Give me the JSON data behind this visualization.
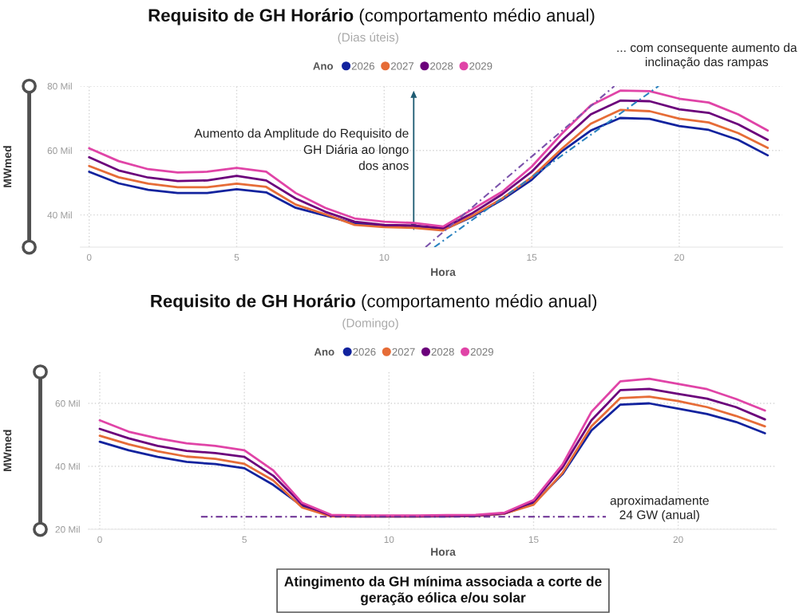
{
  "chart_data": [
    {
      "type": "line",
      "title": "Requisito de GH Horário (comportamento médio anual)",
      "subtitle": "(Dias úteis)",
      "xlabel": "Hora",
      "ylabel": "MWmed",
      "legend_title": "Ano",
      "legend": "top",
      "grid": true,
      "x": [
        0,
        1,
        2,
        3,
        4,
        5,
        6,
        7,
        8,
        9,
        10,
        11,
        12,
        13,
        14,
        15,
        16,
        17,
        18,
        19,
        20,
        21,
        22,
        23
      ],
      "xlim": [
        -0.3,
        23.5
      ],
      "xticks": [
        0,
        5,
        10,
        15,
        20
      ],
      "ylim": [
        30,
        80
      ],
      "yticks": [
        {
          "value": 40,
          "label": "40 Mil"
        },
        {
          "value": 60,
          "label": "60 Mil"
        },
        {
          "value": 80,
          "label": "80 Mil"
        }
      ],
      "series": [
        {
          "name": "2026",
          "color": "#12239e",
          "values": [
            53.4,
            49.8,
            47.8,
            46.8,
            46.8,
            48.0,
            47.0,
            42.2,
            39.8,
            37.3,
            36.6,
            36.4,
            35.4,
            39.5,
            44.7,
            50.9,
            59.6,
            66.2,
            70.1,
            69.8,
            67.6,
            66.4,
            63.3,
            58.5
          ]
        },
        {
          "name": "2027",
          "color": "#e66c37",
          "values": [
            55.2,
            51.7,
            49.7,
            48.6,
            48.6,
            49.7,
            48.7,
            43.2,
            40.2,
            36.9,
            36.2,
            36.0,
            35.2,
            39.8,
            45.1,
            51.7,
            60.4,
            68.3,
            72.6,
            72.2,
            69.9,
            68.7,
            65.4,
            60.8
          ]
        },
        {
          "name": "2028",
          "color": "#6b007b",
          "values": [
            57.9,
            53.8,
            51.6,
            50.5,
            50.7,
            52.1,
            50.7,
            45.1,
            41.0,
            37.9,
            36.9,
            36.7,
            35.9,
            40.6,
            46.4,
            53.4,
            62.9,
            71.2,
            75.5,
            75.3,
            72.8,
            71.7,
            68.1,
            63.3
          ]
        },
        {
          "name": "2029",
          "color": "#e044a7",
          "values": [
            60.7,
            56.7,
            54.2,
            53.2,
            53.4,
            54.6,
            53.4,
            46.8,
            42.2,
            38.9,
            37.9,
            37.5,
            36.4,
            41.8,
            47.2,
            55.0,
            65.0,
            74.0,
            78.6,
            78.4,
            76.1,
            74.9,
            71.2,
            66.2
          ]
        },
        {
          "type": "line",
          "x": [
            11.4,
            17.8
          ],
          "values": [
            30,
            80
          ],
          "color": "#7b52ab",
          "line_style": "dashdot"
        },
        {
          "type": "line",
          "x": [
            11.7,
            19.3
          ],
          "values": [
            30,
            80
          ],
          "color": "#2b83c0",
          "line_style": "dashdot"
        }
      ],
      "annotations": [
        "Aumento da Amplitude do Requisito de\nGH Diária ao longo\ndos anos",
        "... com consequente aumento da\ninclinação das rampas"
      ]
    },
    {
      "type": "line",
      "title": "Requisito de GH Horário (comportamento médio anual)",
      "subtitle": "(Domingo)",
      "xlabel": "Hora",
      "ylabel": "MWmed",
      "legend_title": "Ano",
      "legend": "top",
      "grid": true,
      "x": [
        0,
        1,
        2,
        3,
        4,
        5,
        6,
        7,
        8,
        9,
        10,
        11,
        12,
        13,
        14,
        15,
        16,
        17,
        18,
        19,
        20,
        21,
        22,
        23
      ],
      "xlim": [
        -0.4,
        23.4
      ],
      "xticks": [
        0,
        5,
        10,
        15,
        20
      ],
      "ylim": [
        20,
        70
      ],
      "yticks": [
        {
          "value": 20,
          "label": "20 Mil"
        },
        {
          "value": 40,
          "label": "40 Mil"
        },
        {
          "value": 60,
          "label": "60 Mil"
        }
      ],
      "series": [
        {
          "name": "2026",
          "color": "#12239e",
          "values": [
            47.8,
            45.1,
            43.0,
            41.4,
            40.7,
            39.4,
            34.1,
            27.4,
            24.2,
            24.1,
            24.1,
            24.1,
            24.1,
            24.2,
            25.0,
            28.2,
            37.5,
            51.4,
            59.6,
            60.0,
            58.3,
            56.6,
            54.1,
            50.5
          ]
        },
        {
          "name": "2027",
          "color": "#e66c37",
          "values": [
            49.7,
            47.0,
            44.8,
            43.1,
            42.4,
            40.8,
            35.5,
            26.9,
            24.1,
            24.1,
            24.1,
            24.1,
            24.2,
            24.3,
            25.0,
            27.8,
            37.9,
            52.7,
            61.7,
            62.1,
            60.7,
            58.8,
            56.0,
            52.7
          ]
        },
        {
          "name": "2028",
          "color": "#6b007b",
          "values": [
            51.9,
            48.9,
            46.5,
            44.9,
            44.2,
            43.0,
            37.0,
            27.9,
            24.4,
            24.2,
            24.2,
            24.2,
            24.3,
            24.4,
            25.1,
            28.8,
            39.6,
            54.6,
            64.2,
            64.6,
            63.0,
            61.5,
            58.8,
            54.9
          ]
        },
        {
          "name": "2029",
          "color": "#e044a7",
          "values": [
            54.6,
            51.0,
            48.9,
            47.3,
            46.5,
            45.1,
            38.7,
            28.4,
            24.6,
            24.4,
            24.4,
            24.4,
            24.5,
            24.6,
            25.3,
            29.3,
            40.6,
            57.3,
            67.0,
            67.8,
            66.2,
            64.5,
            61.4,
            57.7
          ]
        },
        {
          "type": "line",
          "x": [
            3.5,
            17.5
          ],
          "values": [
            24,
            24
          ],
          "color": "#6a2c91",
          "line_style": "dashdot"
        }
      ],
      "annotations": [
        {
          "text": "aproximadamente\n24 GW (anual)",
          "x": 17.5,
          "y": 24
        },
        "Atingimento da GH mínima associada a corte de\ngeração eólica e/ou solar"
      ]
    }
  ]
}
